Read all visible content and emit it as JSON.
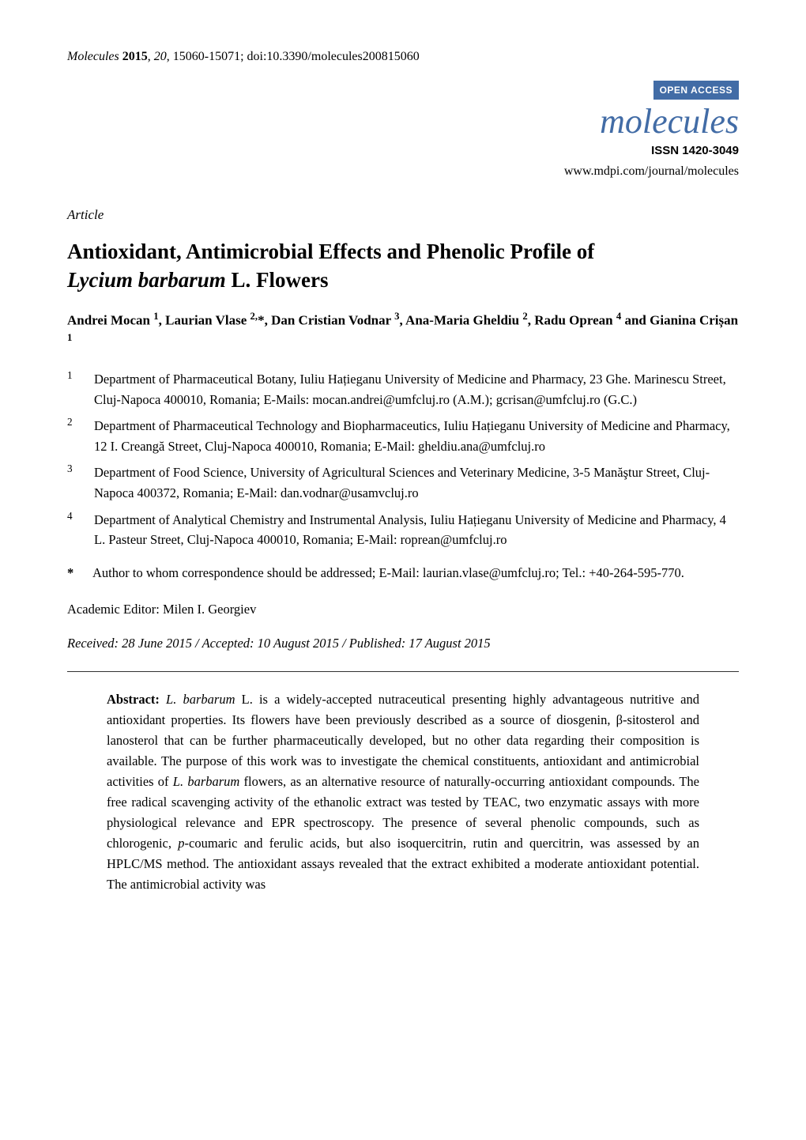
{
  "header": {
    "journal_italic": "Molecules",
    "year": "2015",
    "volume": "20",
    "pages": "15060-15071",
    "doi": "doi:10.3390/molecules200815060"
  },
  "badge": {
    "open_access": "OPEN ACCESS",
    "journal_logo": "molecules",
    "issn": "ISSN 1420-3049",
    "url": "www.mdpi.com/journal/molecules"
  },
  "article_type": "Article",
  "title": {
    "line1": "Antioxidant, Antimicrobial Effects and Phenolic Profile of",
    "species": "Lycium barbarum",
    "line2_rest": " L. Flowers"
  },
  "authors": {
    "a1": "Andrei Mocan ",
    "a1s": "1",
    "a2": ", Laurian Vlase ",
    "a2s": "2,",
    "a2star": "*",
    "a3": ", Dan Cristian Vodnar ",
    "a3s": "3",
    "a4": ", Ana-Maria Gheldiu ",
    "a4s": "2",
    "a5": ", Radu Oprean ",
    "a5s": "4",
    "a6_pre": "and ",
    "a6": "Gianina Crișan ",
    "a6s": "1"
  },
  "affiliations": [
    {
      "num": "1",
      "text": "Department of Pharmaceutical Botany, Iuliu Hațieganu University of Medicine and Pharmacy, 23 Ghe. Marinescu Street, Cluj-Napoca 400010, Romania; E-Mails: mocan.andrei@umfcluj.ro (A.M.); gcrisan@umfcluj.ro (G.C.)"
    },
    {
      "num": "2",
      "text": "Department of Pharmaceutical Technology and Biopharmaceutics, Iuliu Hațieganu University of Medicine and Pharmacy, 12 I. Creangă Street, Cluj-Napoca 400010, Romania; E-Mail: gheldiu.ana@umfcluj.ro"
    },
    {
      "num": "3",
      "text": "Department of Food Science, University of Agricultural Sciences and Veterinary Medicine, 3-5 Manăştur Street, Cluj-Napoca 400372, Romania; E-Mail: dan.vodnar@usamvcluj.ro"
    },
    {
      "num": "4",
      "text": "Department of Analytical Chemistry and Instrumental Analysis, Iuliu Hațieganu University of Medicine and Pharmacy, 4 L. Pasteur Street, Cluj-Napoca 400010, Romania; E-Mail: roprean@umfcluj.ro"
    }
  ],
  "corresponding": {
    "star": "*",
    "text": "Author to whom correspondence should be addressed; E-Mail: laurian.vlase@umfcluj.ro; Tel.: +40-264-595-770."
  },
  "editor": "Academic Editor: Milen I. Georgiev",
  "dates": "Received: 28 June 2015 / Accepted: 10 August 2015 / Published: 17 August 2015",
  "abstract": {
    "label": "Abstract:",
    "species1": "L. barbarum",
    "t1": " L. is a widely-accepted nutraceutical presenting highly advantageous nutritive and antioxidant properties. Its flowers have been previously described as a source of diosgenin, β-sitosterol and lanosterol that can be further pharmaceutically developed, but no other data regarding their composition is available. The purpose of this work was to investigate the chemical constituents, antioxidant and antimicrobial activities of ",
    "species2": "L. barbarum",
    "t2": " flowers, as an alternative resource of naturally-occurring antioxidant compounds. The free radical scavenging activity of the ethanolic extract was tested by TEAC, two enzymatic assays with more physiological relevance and EPR spectroscopy. The presence of several phenolic compounds, such as chlorogenic, ",
    "p_coum": "p",
    "t3": "-coumaric and ferulic acids, but also isoquercitrin, rutin and quercitrin, was assessed by an HPLC/MS method. The antioxidant assays revealed that the extract exhibited a moderate antioxidant potential. The antimicrobial activity was"
  },
  "colors": {
    "accent": "#426ca6",
    "text": "#000000",
    "background": "#ffffff",
    "rule": "#333333"
  }
}
